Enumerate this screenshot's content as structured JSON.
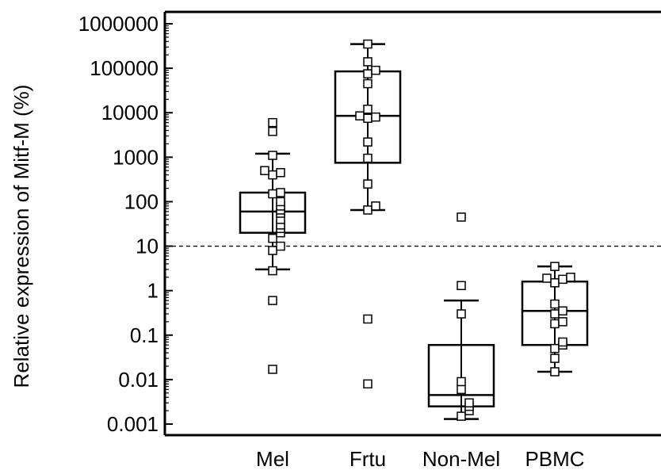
{
  "chart_data": {
    "type": "box",
    "ylabel": "Relative expression of Mitf-M (%)",
    "yscale": "log",
    "ylim": [
      0.0007,
      1500000
    ],
    "yticks": [
      {
        "value": 0.001,
        "label": "0.001"
      },
      {
        "value": 0.01,
        "label": "0.01"
      },
      {
        "value": 0.1,
        "label": "0.1"
      },
      {
        "value": 1,
        "label": "1"
      },
      {
        "value": 10,
        "label": "10"
      },
      {
        "value": 100,
        "label": "100"
      },
      {
        "value": 1000,
        "label": "1000"
      },
      {
        "value": 10000,
        "label": "10000"
      },
      {
        "value": 100000,
        "label": "100000"
      },
      {
        "value": 1000000,
        "label": "1000000"
      }
    ],
    "reference_line": 10,
    "groups": [
      {
        "category": "Mel",
        "box": {
          "q1": 20,
          "median": 60,
          "q3": 160
        },
        "whiskers": [
          3,
          1200
        ],
        "points": [
          0.017,
          0.6,
          2.8,
          8,
          10,
          15,
          20,
          25,
          30,
          40,
          55,
          65,
          80,
          100,
          150,
          160,
          400,
          450,
          500,
          1100,
          3800,
          6000
        ]
      },
      {
        "category": "Frtu",
        "box": {
          "q1": 750,
          "median": 8500,
          "q3": 85000
        },
        "whiskers": [
          65,
          350000
        ],
        "points": [
          0.008,
          0.23,
          65,
          80,
          250,
          950,
          2200,
          7500,
          8000,
          8500,
          12000,
          45000,
          75000,
          90000,
          140000,
          350000
        ]
      },
      {
        "category": "Non-Mel",
        "box": {
          "q1": 0.0025,
          "median": 0.0045,
          "q3": 0.06
        },
        "whiskers": [
          0.0013,
          0.6
        ],
        "points": [
          0.0015,
          0.002,
          0.0025,
          0.003,
          0.006,
          0.009,
          0.3,
          1.3,
          45
        ]
      },
      {
        "category": "PBMC",
        "box": {
          "q1": 0.06,
          "median": 0.35,
          "q3": 1.6
        },
        "whiskers": [
          0.015,
          3.5
        ],
        "points": [
          0.015,
          0.03,
          0.05,
          0.06,
          0.07,
          0.18,
          0.2,
          0.3,
          0.35,
          0.5,
          1.5,
          1.8,
          1.9,
          2,
          3.5
        ]
      }
    ]
  }
}
